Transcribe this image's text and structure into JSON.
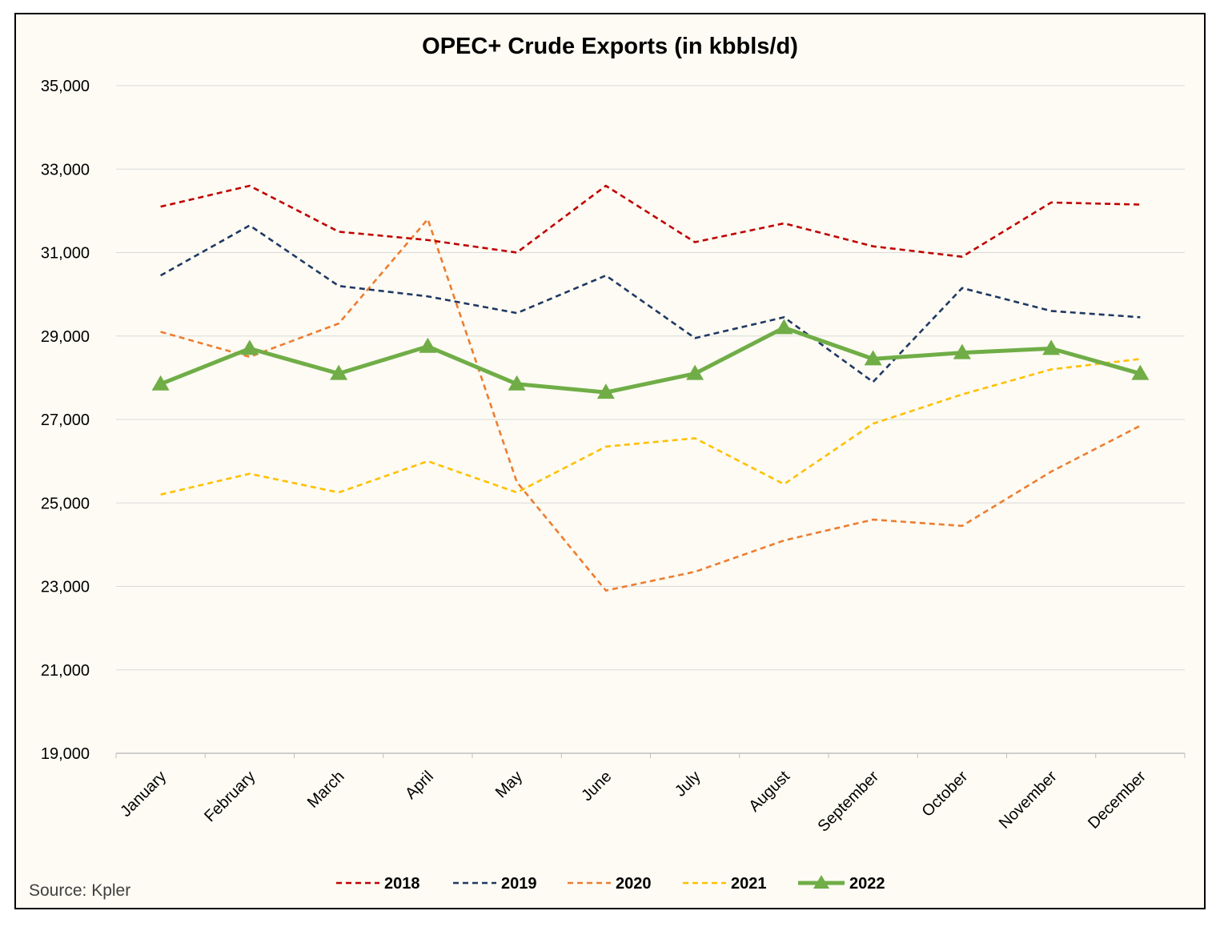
{
  "chart_data": {
    "type": "line",
    "title": "OPEC+ Crude Exports (in kbbls/d)",
    "xlabel": "",
    "ylabel": "",
    "ylim": [
      19000,
      35000
    ],
    "yticks": [
      19000,
      21000,
      23000,
      25000,
      27000,
      29000,
      31000,
      33000,
      35000
    ],
    "ytick_labels": [
      "19,000",
      "21,000",
      "23,000",
      "25,000",
      "27,000",
      "29,000",
      "31,000",
      "33,000",
      "35,000"
    ],
    "grid": true,
    "legend_position": "bottom",
    "categories": [
      "January",
      "February",
      "March",
      "April",
      "May",
      "June",
      "July",
      "August",
      "September",
      "October",
      "November",
      "December"
    ],
    "series": [
      {
        "name": "2018",
        "color": "#c00000",
        "style": "dashed",
        "marker": "none",
        "values": [
          32100,
          32600,
          31500,
          31300,
          31000,
          32600,
          31250,
          31700,
          31150,
          30900,
          32200,
          32150
        ]
      },
      {
        "name": "2019",
        "color": "#1f3864",
        "style": "dashed",
        "marker": "none",
        "values": [
          30450,
          31650,
          30200,
          29950,
          29550,
          30450,
          28950,
          29450,
          27900,
          30150,
          29600,
          29450
        ]
      },
      {
        "name": "2020",
        "color": "#ed7d31",
        "style": "dashed",
        "marker": "none",
        "values": [
          29100,
          28500,
          29300,
          31800,
          25500,
          22900,
          23350,
          24100,
          24600,
          24450,
          25750,
          26850
        ]
      },
      {
        "name": "2021",
        "color": "#ffc000",
        "style": "dashed",
        "marker": "none",
        "values": [
          25200,
          25700,
          25250,
          26000,
          25250,
          26350,
          26550,
          25450,
          26900,
          27600,
          28200,
          28450
        ]
      },
      {
        "name": "2022",
        "color": "#70ad47",
        "style": "solid",
        "marker": "triangle",
        "values": [
          27850,
          28700,
          28100,
          28750,
          27850,
          27650,
          28100,
          29200,
          28450,
          28600,
          28700,
          28100
        ]
      }
    ]
  },
  "source_text": "Source: Kpler"
}
